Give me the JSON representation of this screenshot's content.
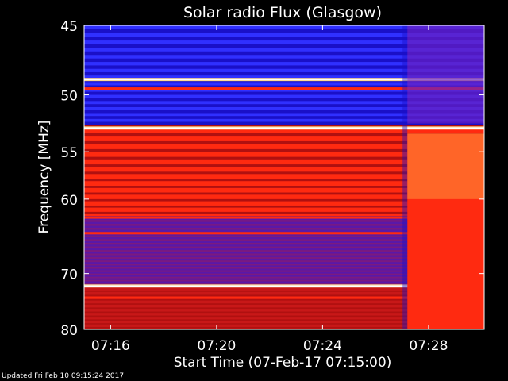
{
  "chart_data": {
    "type": "heatmap",
    "title": "Solar radio Flux (Glasgow)",
    "xlabel": "Start Time (07-Feb-17 07:15:00)",
    "ylabel": "Frequency [MHz]",
    "x_ticks": [
      "07:16",
      "07:20",
      "07:24",
      "07:28"
    ],
    "x_tick_minutes": [
      16,
      20,
      24,
      28
    ],
    "xlim_minutes": [
      15,
      30.1
    ],
    "y_ticks": [
      "45",
      "50",
      "55",
      "60",
      "70",
      "80"
    ],
    "y_tick_values": [
      45,
      50,
      55,
      60,
      70,
      80
    ],
    "ylim": [
      45,
      80
    ],
    "y_scale": "reciprocal",
    "colormap": [
      "#000000",
      "#1a10c8",
      "#3030ff",
      "#b01010",
      "#ff2a10",
      "#ff7a30",
      "#ffd890",
      "#ffffff"
    ],
    "enhancement_start_minute": 27.2,
    "bright_lines_mhz": [
      48.8,
      52.8,
      72.0
    ],
    "rfi_lines_mhz": [
      49.5,
      62.2,
      64.2,
      74.0
    ]
  },
  "footer": {
    "text": "Updated Fri Feb 10 09:15:24 2017"
  }
}
